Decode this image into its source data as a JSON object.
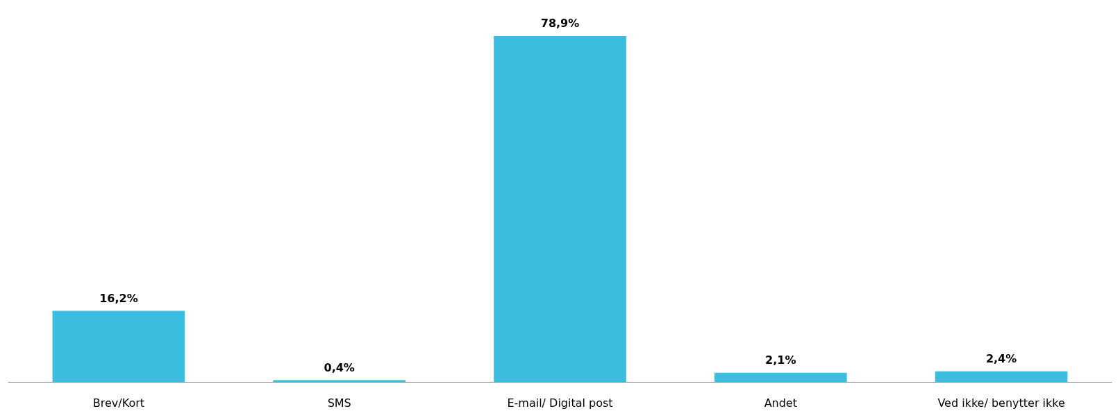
{
  "chart_data": {
    "type": "bar",
    "categories": [
      "Brev/Kort",
      "SMS",
      "E-mail/ Digital post",
      "Andet",
      "Ved ikke/ benytter ikke"
    ],
    "values": [
      16.2,
      0.4,
      78.9,
      2.1,
      2.4
    ],
    "value_labels": [
      "16,2%",
      "0,4%",
      "78,9%",
      "2,1%",
      "2,4%"
    ],
    "color": "#3bbde0"
  }
}
